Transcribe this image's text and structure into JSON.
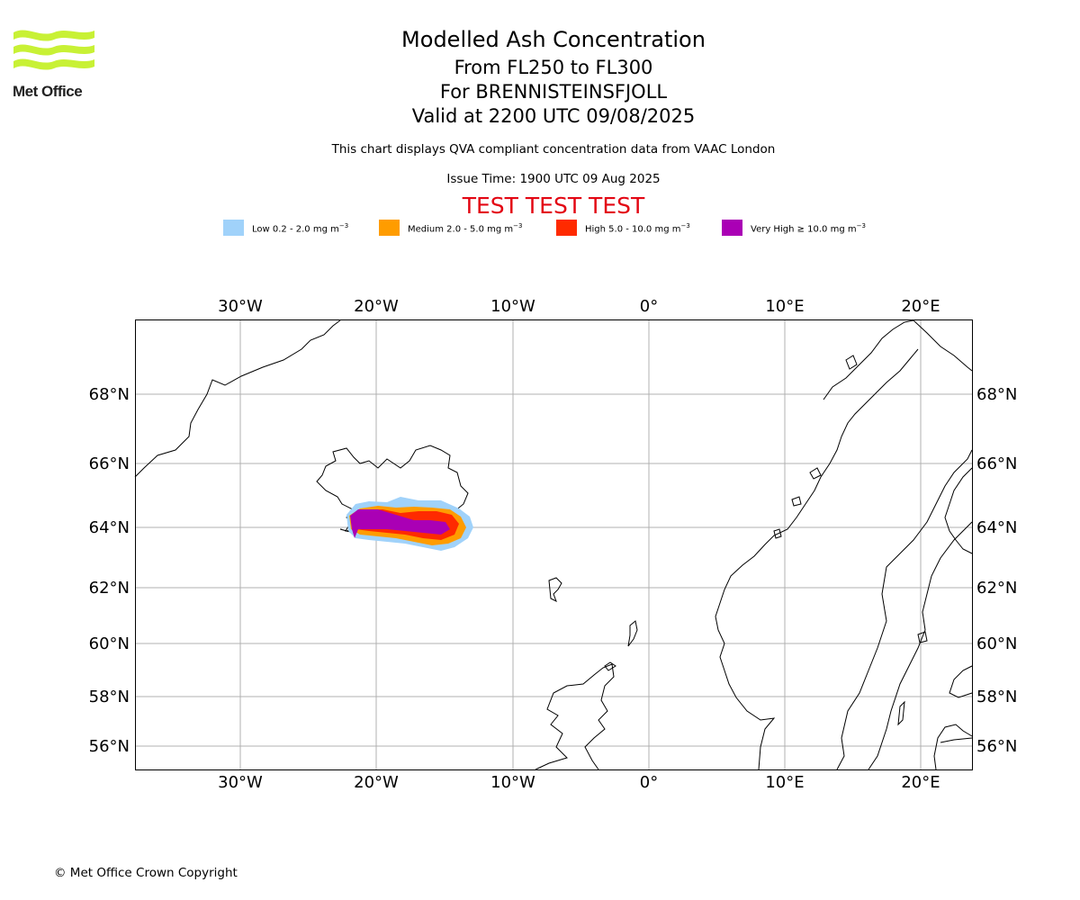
{
  "header": {
    "logo_text": "Met Office",
    "title": "Modelled Ash Concentration",
    "subtitle_levels": "From FL250 to FL300",
    "subtitle_volcano": "For BRENNISTEINSFJOLL",
    "subtitle_valid": "Valid at 2200 UTC 09/08/2025",
    "description": "This chart displays QVA compliant concentration data from VAAC London",
    "issue_time": "Issue Time: 1900 UTC 09 Aug 2025",
    "test_banner": "TEST TEST TEST"
  },
  "legend": [
    {
      "label": "Low 0.2 - 2.0 mg m",
      "sup": "−3",
      "color": "#a0d2fa"
    },
    {
      "label": "Medium 2.0 - 5.0 mg m",
      "sup": "−3",
      "color": "#ff9c00"
    },
    {
      "label": "High 5.0 - 10.0 mg m",
      "sup": "−3",
      "color": "#ff2a00"
    },
    {
      "label": "Very High  ≥  10.0 mg m",
      "sup": "−3",
      "color": "#aa00b5"
    }
  ],
  "map": {
    "lon_labels": [
      "30°W",
      "20°W",
      "10°W",
      "0°",
      "10°E",
      "20°E"
    ],
    "lat_labels": [
      "68°N",
      "66°N",
      "64°N",
      "62°N",
      "60°N",
      "58°N",
      "56°N"
    ],
    "grid": true
  },
  "footer": {
    "copyright": "© Met Office Crown Copyright"
  }
}
